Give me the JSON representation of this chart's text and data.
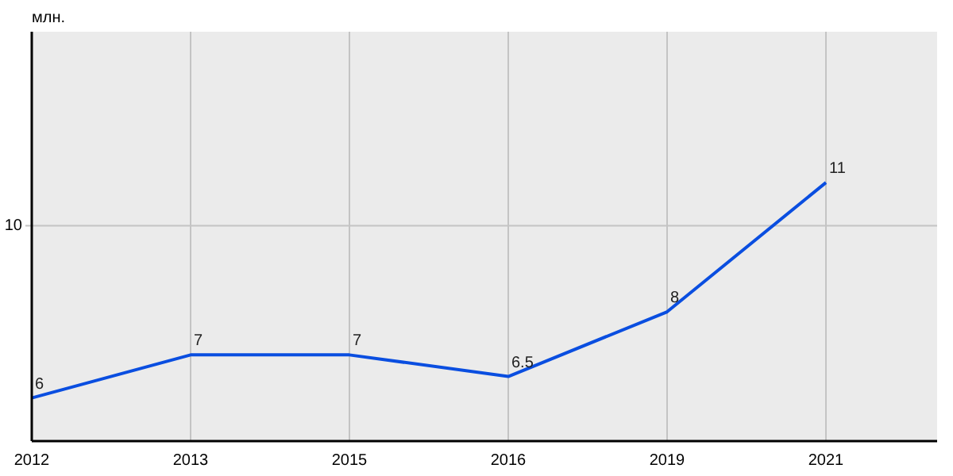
{
  "chart_data": {
    "type": "line",
    "ylabel": "млн.",
    "categories": [
      "2012",
      "2013",
      "2015",
      "2016",
      "2019",
      "2021"
    ],
    "series": [
      {
        "color": "#0a4ee0",
        "values": [
          6,
          7,
          7,
          6.5,
          8,
          11
        ]
      }
    ],
    "ylim": [
      5,
      14.5
    ],
    "ref_lines": [
      {
        "axis": "y",
        "value": 10,
        "label": "10",
        "color": "#c4c4c4"
      }
    ],
    "grid": "x",
    "data_labels": true,
    "marker": "none",
    "line_style": "solid"
  }
}
